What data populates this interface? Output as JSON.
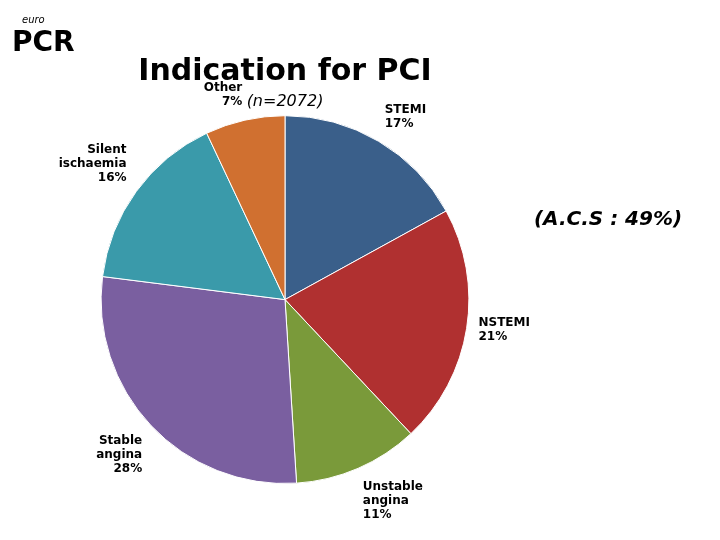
{
  "chart_data": {
    "type": "pie",
    "title": "Indication for PCI",
    "subtitle": "(n=2072)",
    "categories": [
      "STEMI",
      "NSTEMI",
      "Unstable\nangina",
      "Stable\nangina",
      "Silent\nischaemia",
      "Other"
    ],
    "values": [
      17,
      21,
      11,
      28,
      16,
      7
    ],
    "value_labels": [
      "17%",
      "21%",
      "11%",
      "28%",
      "16%",
      "7%"
    ],
    "colors": [
      "#3a5f8a",
      "#b03030",
      "#7a9a3a",
      "#7a5fa0",
      "#3a9aaa",
      "#d07030"
    ],
    "data_labels": true,
    "annotations": [
      "(A.C.S : 49%)",
      "euro",
      "PCR"
    ]
  }
}
